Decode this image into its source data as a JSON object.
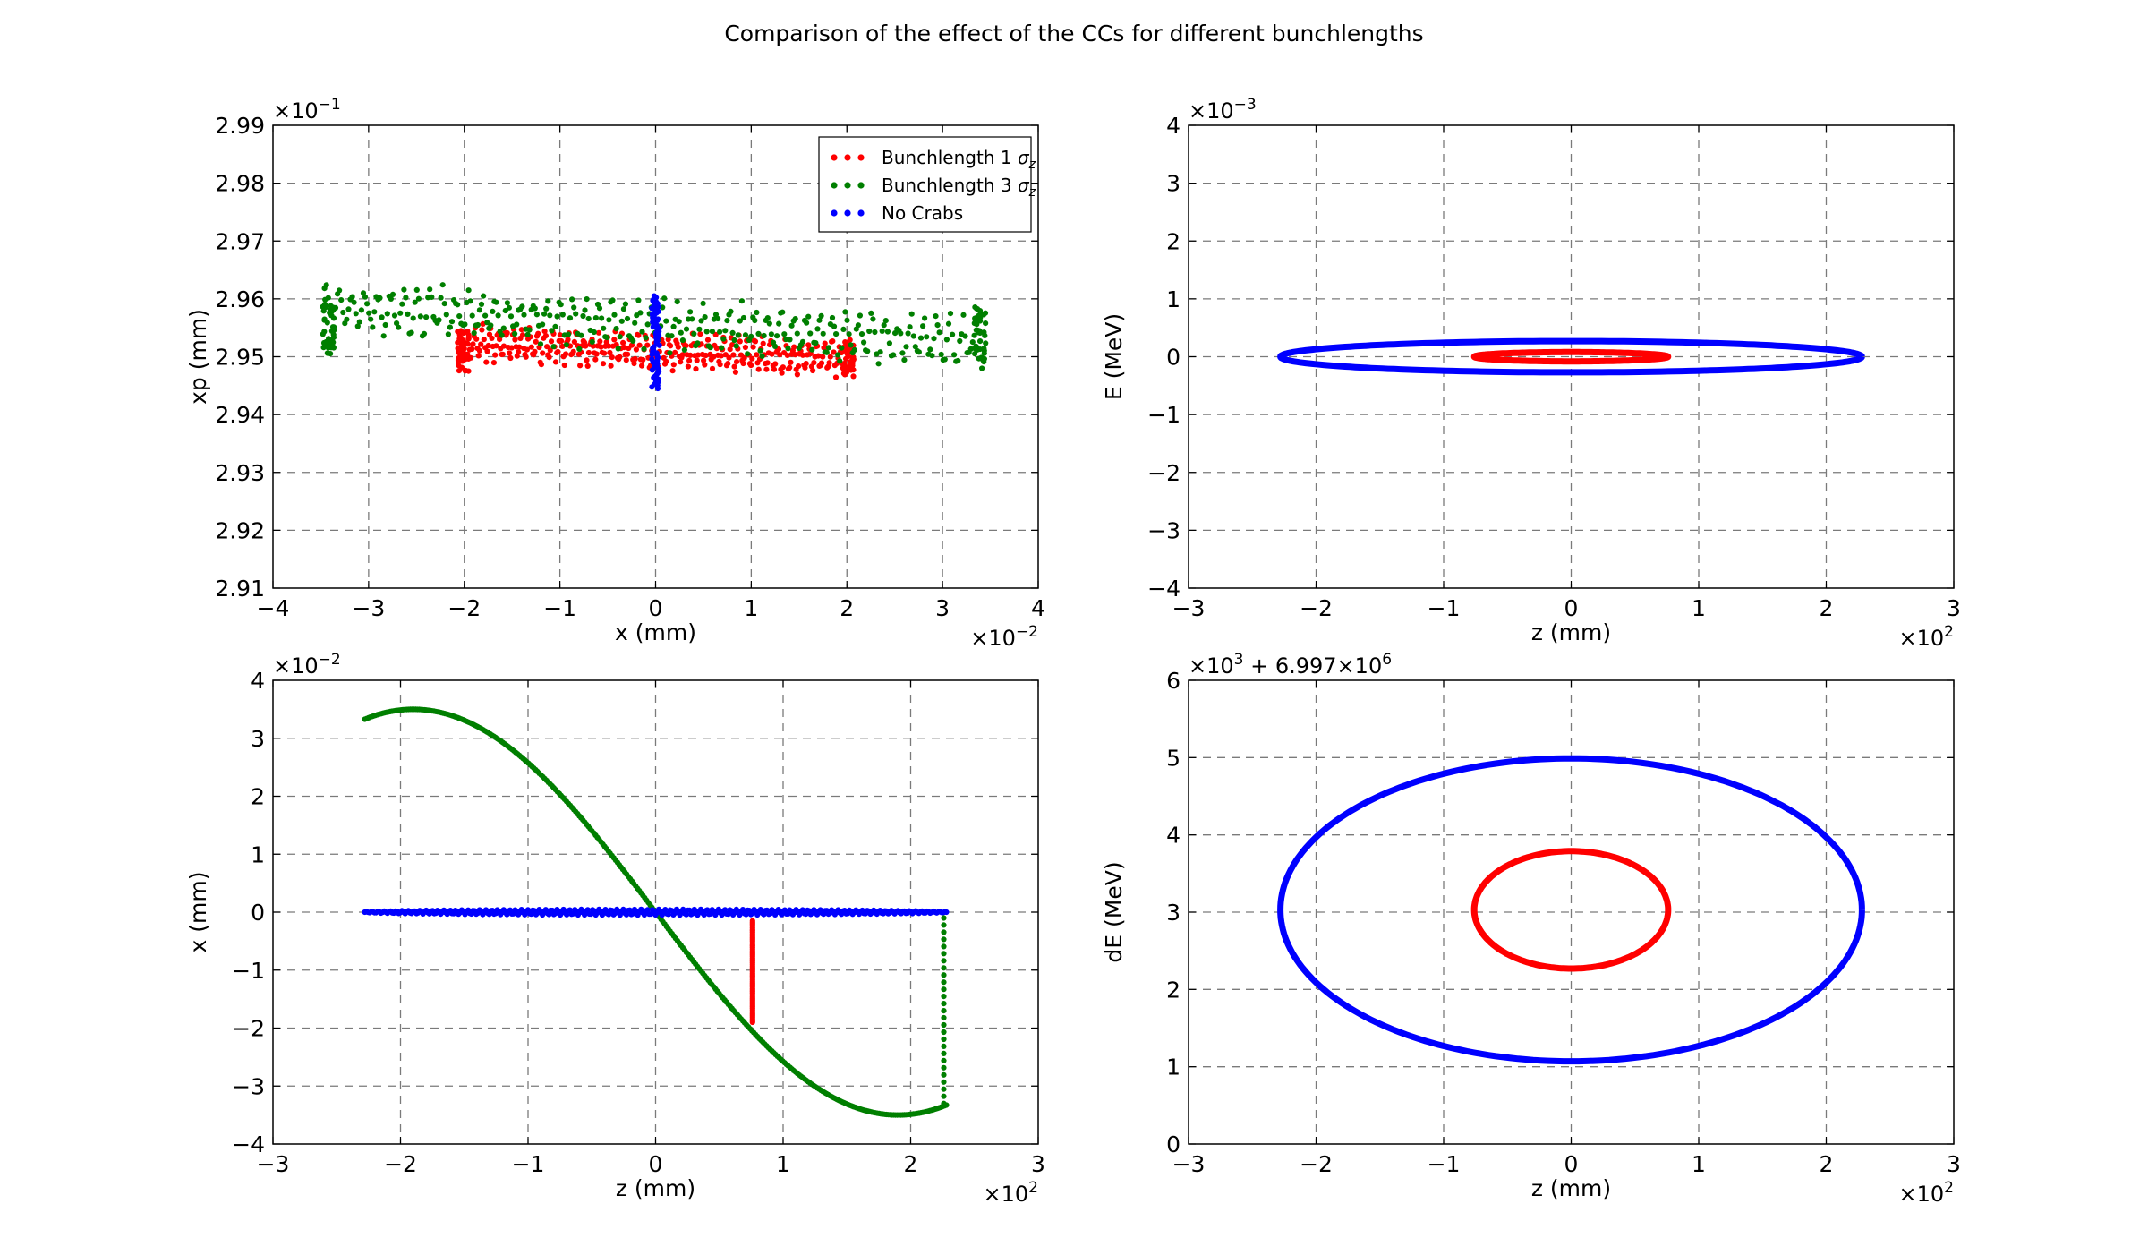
{
  "figure": {
    "title": "Comparison of the effect of the CCs for different bunchlengths"
  },
  "colors": {
    "bunch1": "#ff0000",
    "bunch3": "#007f00",
    "nocrabs": "#0000ff",
    "grid": "#7a7a7a"
  },
  "legend": {
    "entries": [
      {
        "label": "Bunchlength 1 ",
        "sub": "z",
        "color": "#ff0000"
      },
      {
        "label": "Bunchlength 3 ",
        "sub": "z",
        "color": "#007f00"
      },
      {
        "label": "No Crabs",
        "sub": "",
        "color": "#0000ff"
      }
    ]
  },
  "chart_data": [
    {
      "type": "scatter",
      "panel": "top-left",
      "xlabel": "x (mm)",
      "ylabel": "xp (mm)",
      "xlim": [
        -4,
        4
      ],
      "ylim": [
        2.91,
        2.99
      ],
      "x_ticks": [
        "−4",
        "−3",
        "−2",
        "−1",
        "0",
        "1",
        "2",
        "3",
        "4"
      ],
      "y_ticks": [
        "2.91",
        "2.92",
        "2.93",
        "2.94",
        "2.95",
        "2.96",
        "2.97",
        "2.98",
        "2.99"
      ],
      "x_multiplier": "×10",
      "x_multiplier_exp": "−2",
      "y_multiplier": "×10",
      "y_multiplier_exp": "−1",
      "legend_position": "upper-right",
      "series": [
        {
          "name": "Bunchlength 1 σz",
          "shape": "band",
          "x_range": [
            -2.07,
            2.07
          ],
          "y_center": 2.951,
          "y_amplitude": 0.0035,
          "y_slope_per_unit": -0.0007
        },
        {
          "name": "Bunchlength 3 σz",
          "shape": "band",
          "x_range": [
            -3.48,
            3.45
          ],
          "y_center": 2.9555,
          "y_amplitude": 0.005,
          "y_slope_per_unit": -0.0009
        },
        {
          "name": "No Crabs",
          "shape": "vertical-line",
          "x_center": 0.0,
          "y_range": [
            2.9445,
            2.9605
          ]
        }
      ]
    },
    {
      "type": "line",
      "panel": "top-right",
      "xlabel": "z (mm)",
      "ylabel": "E (MeV)",
      "xlim": [
        -3,
        3
      ],
      "ylim": [
        -4,
        4
      ],
      "x_ticks": [
        "−3",
        "−2",
        "−1",
        "0",
        "1",
        "2",
        "3"
      ],
      "y_ticks": [
        "−4",
        "−3",
        "−2",
        "−1",
        "0",
        "1",
        "2",
        "3",
        "4"
      ],
      "x_multiplier": "×10",
      "x_multiplier_exp": "2",
      "y_multiplier": "×10",
      "y_multiplier_exp": "−3",
      "series": [
        {
          "name": "Bunchlength 1 σz",
          "shape": "ellipse",
          "center": [
            0,
            0
          ],
          "rx": 0.76,
          "ry": 0.08
        },
        {
          "name": "No Crabs",
          "shape": "ellipse",
          "center": [
            0,
            0
          ],
          "rx": 2.28,
          "ry": 0.27
        }
      ]
    },
    {
      "type": "scatter",
      "panel": "bottom-left",
      "xlabel": "z (mm)",
      "ylabel": "x (mm)",
      "xlim": [
        -3,
        3
      ],
      "ylim": [
        -4,
        4
      ],
      "x_ticks": [
        "−3",
        "−2",
        "−1",
        "0",
        "1",
        "2",
        "3"
      ],
      "y_ticks": [
        "−4",
        "−3",
        "−2",
        "−1",
        "0",
        "1",
        "2",
        "3",
        "4"
      ],
      "x_multiplier": "×10",
      "x_multiplier_exp": "2",
      "y_multiplier": "×10",
      "y_multiplier_exp": "−2",
      "series": [
        {
          "name": "Bunchlength 3 σz",
          "shape": "sine",
          "x_range": [
            -2.28,
            2.28
          ],
          "amplitude": 3.5,
          "peak_x": -1.9,
          "plus_vertical_at_x": 2.26,
          "vertical_y_range": [
            -3.3,
            -0.1
          ]
        },
        {
          "name": "Bunchlength 1 σz",
          "shape": "vertical-line",
          "x_center": 0.76,
          "y_range": [
            -1.9,
            -0.15
          ]
        },
        {
          "name": "No Crabs",
          "shape": "flat-band",
          "x_range": [
            -2.28,
            2.28
          ],
          "y_center": 0.0,
          "half_width": 0.05
        }
      ]
    },
    {
      "type": "line",
      "panel": "bottom-right",
      "xlabel": "z (mm)",
      "ylabel": "dE (MeV)",
      "xlim": [
        -3,
        3
      ],
      "ylim": [
        0,
        6
      ],
      "x_ticks": [
        "−3",
        "−2",
        "−1",
        "0",
        "1",
        "2",
        "3"
      ],
      "y_ticks": [
        "0",
        "1",
        "2",
        "3",
        "4",
        "5",
        "6"
      ],
      "x_multiplier": "×10",
      "x_multiplier_exp": "2",
      "y_multiplier": "×10",
      "y_multiplier_exp": "3",
      "y_offset": "+ 6.997×10",
      "y_offset_exp": "6",
      "series": [
        {
          "name": "Bunchlength 1 σz",
          "shape": "ellipse",
          "center": [
            0,
            3.03
          ],
          "rx": 0.76,
          "ry": 0.76
        },
        {
          "name": "No Crabs",
          "shape": "ellipse",
          "center": [
            0,
            3.03
          ],
          "rx": 2.28,
          "ry": 1.96
        }
      ]
    }
  ]
}
